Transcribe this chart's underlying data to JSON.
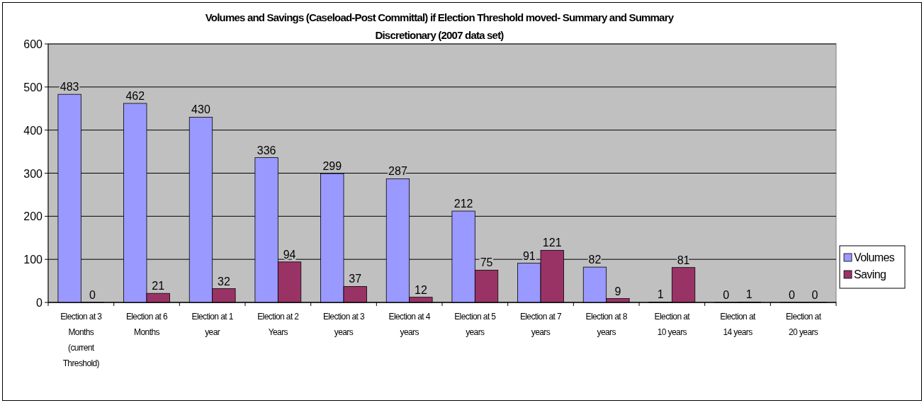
{
  "chart_data": {
    "type": "bar",
    "title": "Volumes and Savings (Caseload-Post Committal) if Election Threshold moved- Summary and Summary Discretionary (2007 data set)",
    "categories": [
      "Election at 3 Months (current Threshold)",
      "Election at 6 Months",
      "Election at 1 year",
      "Election at 2 Years",
      "Election at 3 years",
      "Election at 4 years",
      "Election at 5 years",
      "Election at 7 years",
      "Election at 8 years",
      "Election at 10 years",
      "Election at 14 years",
      "Election at 20 years"
    ],
    "series": [
      {
        "name": "Volumes",
        "color": "#9999ff",
        "values": [
          483,
          462,
          430,
          336,
          299,
          287,
          212,
          91,
          82,
          1,
          0,
          0
        ]
      },
      {
        "name": "Saving",
        "color": "#993366",
        "values": [
          0,
          21,
          32,
          94,
          37,
          12,
          75,
          121,
          9,
          81,
          1,
          0
        ]
      }
    ],
    "ylim": [
      0,
      600
    ],
    "yticks": [
      0,
      100,
      200,
      300,
      400,
      500,
      600
    ],
    "grid": "y",
    "legend": "right",
    "data_labels": true
  }
}
